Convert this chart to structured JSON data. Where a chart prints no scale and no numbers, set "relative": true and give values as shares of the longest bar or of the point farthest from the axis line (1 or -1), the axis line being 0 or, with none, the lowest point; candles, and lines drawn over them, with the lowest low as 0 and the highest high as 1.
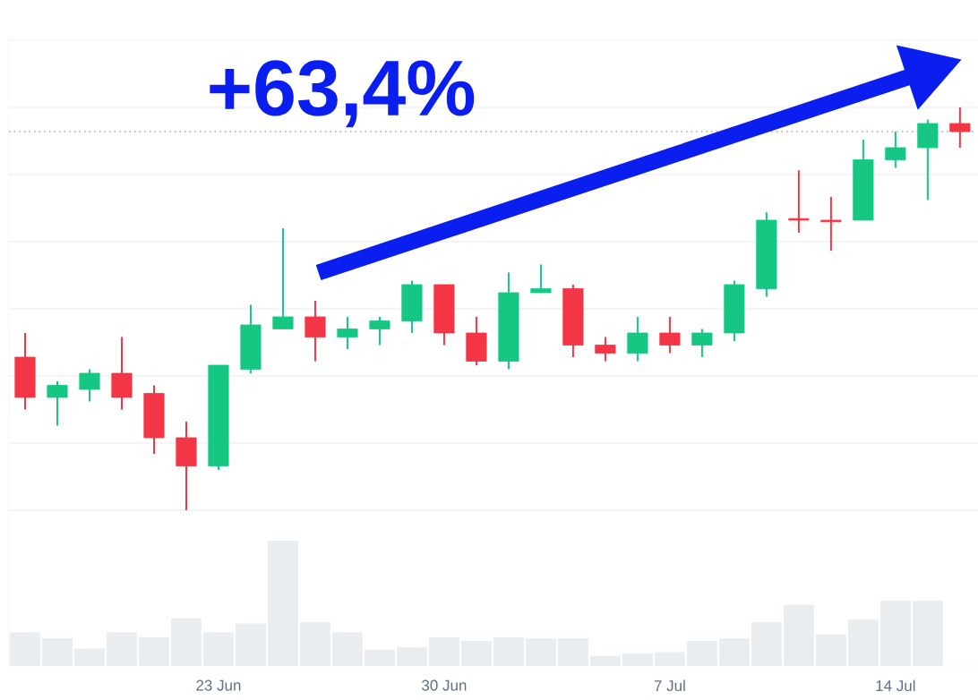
{
  "chart_data": [
    {
      "type": "candlestick",
      "relative": true,
      "tick_labels": false,
      "grid": "y",
      "annotations": [
        "+63,4%"
      ],
      "categories": [
        null,
        null,
        null,
        null,
        null,
        null,
        null,
        null,
        null,
        null,
        null,
        null,
        null,
        null,
        null,
        null,
        null,
        null,
        null,
        null,
        null,
        null,
        null,
        null,
        null,
        null,
        null,
        null,
        null,
        null
      ],
      "ohlc": [
        [
          0.38,
          0.44,
          0.25,
          0.28
        ],
        [
          0.28,
          0.32,
          0.21,
          0.31
        ],
        [
          0.3,
          0.35,
          0.27,
          0.34
        ],
        [
          0.34,
          0.43,
          0.25,
          0.28
        ],
        [
          0.29,
          0.31,
          0.14,
          0.18
        ],
        [
          0.18,
          0.22,
          0,
          0.11
        ],
        [
          0.11,
          0.36,
          0.1,
          0.36
        ],
        [
          0.35,
          0.51,
          0.34,
          0.46
        ],
        [
          0.45,
          0.7,
          0.45,
          0.48
        ],
        [
          0.48,
          0.52,
          0.37,
          0.43
        ],
        [
          0.43,
          0.48,
          0.4,
          0.45
        ],
        [
          0.45,
          0.48,
          0.41,
          0.47
        ],
        [
          0.47,
          0.57,
          0.44,
          0.56
        ],
        [
          0.56,
          0.56,
          0.41,
          0.44
        ],
        [
          0.44,
          0.48,
          0.36,
          0.37
        ],
        [
          0.37,
          0.59,
          0.35,
          0.54
        ],
        [
          0.54,
          0.61,
          0.54,
          0.55
        ],
        [
          0.55,
          0.56,
          0.38,
          0.41
        ],
        [
          0.41,
          0.43,
          0.37,
          0.39
        ],
        [
          0.39,
          0.48,
          0.37,
          0.44
        ],
        [
          0.44,
          0.48,
          0.39,
          0.41
        ],
        [
          0.41,
          0.45,
          0.38,
          0.44
        ],
        [
          0.44,
          0.57,
          0.42,
          0.56
        ],
        [
          0.55,
          0.74,
          0.53,
          0.72
        ],
        [
          0.724,
          0.844,
          0.689,
          0.72
        ],
        [
          0.72,
          0.778,
          0.644,
          0.716
        ],
        [
          0.72,
          0.92,
          0.72,
          0.87
        ],
        [
          0.87,
          0.94,
          0.85,
          0.9
        ],
        [
          0.9,
          0.97,
          0.77,
          0.96
        ],
        [
          0.96,
          1.0,
          0.9,
          0.94
        ]
      ],
      "colors": [
        "#f23645",
        "#16c784",
        "#16c784",
        "#f23645",
        "#f23645",
        "#f23645",
        "#16c784",
        "#16c784",
        "#16c784",
        "#f23645",
        "#16c784",
        "#16c784",
        "#16c784",
        "#f23645",
        "#f23645",
        "#16c784",
        "#16c784",
        "#f23645",
        "#f23645",
        "#16c784",
        "#f23645",
        "#16c784",
        "#16c784",
        "#16c784",
        "#f23645",
        "#f23645",
        "#16c784",
        "#16c784",
        "#16c784",
        "#f23645"
      ],
      "ref_lines": [
        {
          "axis": "y",
          "value": 0.94,
          "line_style": "dotted",
          "color": "#a8a8a8"
        }
      ]
    },
    {
      "type": "bar",
      "relative": true,
      "tick_labels": "x",
      "color": "#eaedf0",
      "categories": [
        null,
        null,
        null,
        null,
        null,
        null,
        "23 Jun",
        null,
        null,
        null,
        null,
        null,
        null,
        "30 Jun",
        null,
        null,
        null,
        null,
        null,
        null,
        "7 Jul",
        null,
        null,
        null,
        null,
        null,
        null,
        "14 Jul",
        null,
        null
      ],
      "values": [
        0.27,
        0.22,
        0.14,
        0.27,
        0.23,
        0.38,
        0.27,
        0.34,
        1,
        0.35,
        0.27,
        0.13,
        0.15,
        0.23,
        0.2,
        0.23,
        0.22,
        0.22,
        0.08,
        0.1,
        0.11,
        0.2,
        0.22,
        0.35,
        0.49,
        0.25,
        0.37,
        0.52,
        0.52,
        null
      ]
    }
  ]
}
